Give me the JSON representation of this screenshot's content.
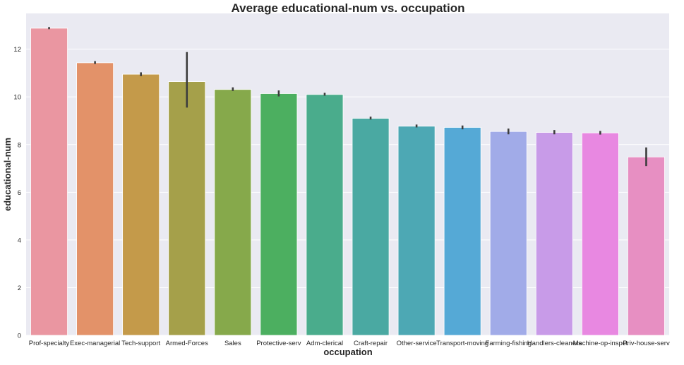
{
  "chart_data": {
    "type": "bar",
    "title": "Average educational-num vs. occupation",
    "xlabel": "occupation",
    "ylabel": "educational-num",
    "ylim": [
      0,
      13.5
    ],
    "yticks": [
      0,
      2,
      4,
      6,
      8,
      10,
      12
    ],
    "grid": true,
    "categories": [
      "Prof-specialty",
      "Exec-managerial",
      "Tech-support",
      "Armed-Forces",
      "Sales",
      "Protective-serv",
      "Adm-clerical",
      "Craft-repair",
      "Other-service",
      "Transport-moving",
      "Farming-fishing",
      "Handlers-cleaners",
      "Machine-op-inspct",
      "Priv-house-serv"
    ],
    "values": [
      12.88,
      11.43,
      10.95,
      10.64,
      10.31,
      10.14,
      10.1,
      9.1,
      8.77,
      8.72,
      8.55,
      8.51,
      8.49,
      7.48
    ],
    "error_low": [
      12.84,
      11.38,
      10.87,
      9.55,
      10.25,
      10.02,
      10.05,
      9.05,
      8.72,
      8.64,
      8.43,
      8.43,
      8.42,
      7.1
    ],
    "error_high": [
      12.93,
      11.5,
      11.03,
      11.88,
      10.4,
      10.27,
      10.17,
      9.17,
      8.84,
      8.8,
      8.67,
      8.61,
      8.57,
      7.88
    ],
    "colors": [
      "#ea96a1",
      "#e39269",
      "#c49a4a",
      "#a5a04a",
      "#86a94b",
      "#4caf60",
      "#4aac8c",
      "#4aa9a2",
      "#4da8b4",
      "#55a9d6",
      "#a1abe8",
      "#c89be8",
      "#e888e1",
      "#e78fc2"
    ]
  }
}
